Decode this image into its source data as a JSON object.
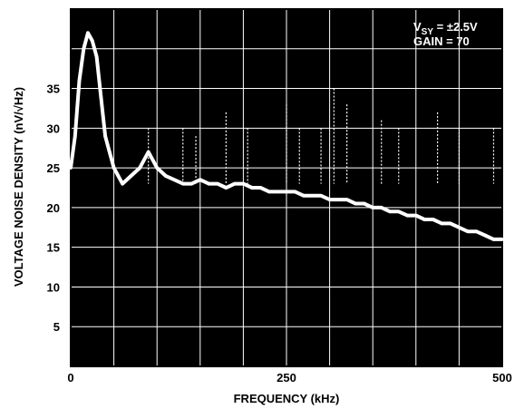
{
  "chart_data": {
    "type": "line",
    "title": "",
    "xlabel": "FREQUENCY (kHz)",
    "ylabel": "VOLTAGE NOISE DENSITY (nV/√Hz)",
    "xlim": [
      0,
      500
    ],
    "ylim": [
      0,
      45
    ],
    "x_ticks": [
      "0",
      "250",
      "500"
    ],
    "y_ticks": [
      "5",
      "10",
      "15",
      "20",
      "25",
      "30",
      "35"
    ],
    "grid": true,
    "background": "#000000",
    "trace_color": "#ffffff",
    "annotation": {
      "line1_prefix": "V",
      "line1_sub": "SY",
      "line1_suffix": " = ±2.5V",
      "line2": "GAIN = 70"
    },
    "series": [
      {
        "x": [
          0,
          5,
          10,
          15,
          20,
          25,
          30,
          35,
          40,
          45,
          50,
          55,
          60,
          70,
          80,
          90,
          100,
          110,
          120,
          130,
          140,
          150,
          160,
          170,
          180,
          190,
          200,
          210,
          220,
          230,
          240,
          250,
          260,
          270,
          280,
          290,
          300,
          310,
          320,
          330,
          340,
          350,
          360,
          370,
          380,
          390,
          400,
          410,
          420,
          430,
          440,
          450,
          460,
          470,
          480,
          490,
          500
        ],
        "values": [
          25,
          29,
          36,
          40,
          42,
          41,
          39,
          34,
          29,
          27,
          25,
          24,
          23,
          24,
          25,
          27,
          25,
          24,
          23.5,
          23,
          23,
          23.5,
          23,
          23,
          22.5,
          23,
          23,
          22.5,
          22.5,
          22,
          22,
          22,
          22,
          21.5,
          21.5,
          21.5,
          21,
          21,
          21,
          20.5,
          20.5,
          20,
          20,
          19.5,
          19.5,
          19,
          19,
          18.5,
          18.5,
          18,
          18,
          17.5,
          17,
          17,
          16.5,
          16,
          16
        ]
      }
    ],
    "spikes": [
      {
        "x": 90,
        "value": 30
      },
      {
        "x": 130,
        "value": 30
      },
      {
        "x": 145,
        "value": 29
      },
      {
        "x": 180,
        "value": 32
      },
      {
        "x": 205,
        "value": 30
      },
      {
        "x": 250,
        "value": 33
      },
      {
        "x": 265,
        "value": 30
      },
      {
        "x": 290,
        "value": 30
      },
      {
        "x": 305,
        "value": 35
      },
      {
        "x": 320,
        "value": 33
      },
      {
        "x": 360,
        "value": 31
      },
      {
        "x": 380,
        "value": 30
      },
      {
        "x": 425,
        "value": 32
      },
      {
        "x": 450,
        "value": 30
      },
      {
        "x": 490,
        "value": 30
      }
    ]
  }
}
